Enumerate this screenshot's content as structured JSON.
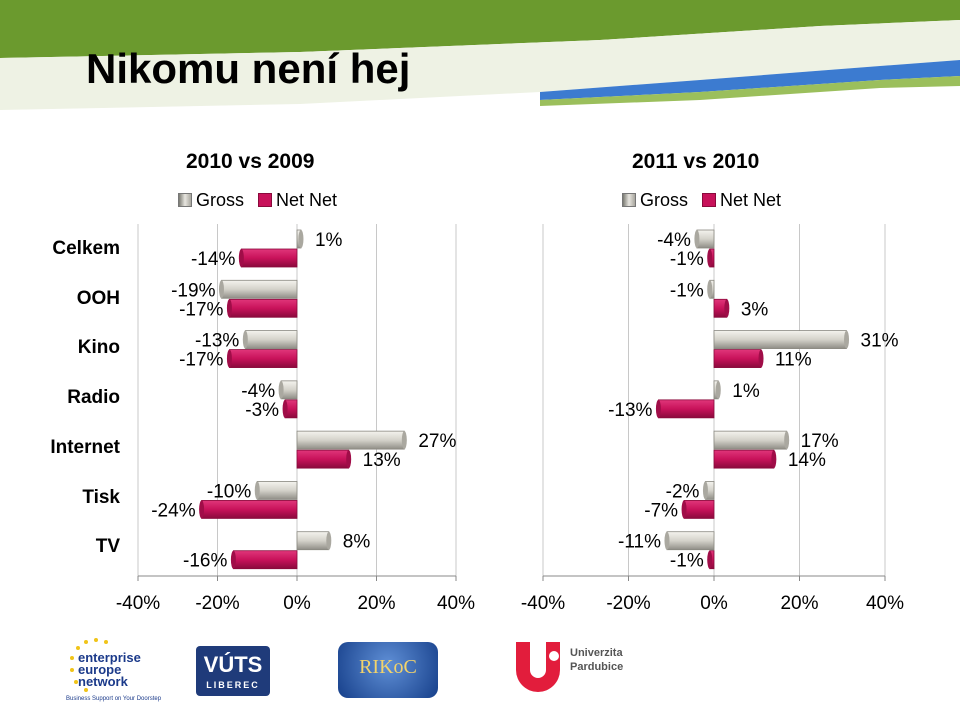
{
  "title": "Nikomu není hej",
  "colors": {
    "gross": "#bdbbb3",
    "net": "#c8125a",
    "banner_green": "#6b9a2e",
    "banner_blue": "#3c7bd0"
  },
  "legend": {
    "gross": "Gross",
    "net": "Net Net"
  },
  "categories": [
    "Celkem",
    "OOH",
    "Kino",
    "Radio",
    "Internet",
    "Tisk",
    "TV"
  ],
  "chart_data": [
    {
      "type": "bar",
      "title": "2010 vs 2009",
      "orientation": "horizontal",
      "categories": [
        "Celkem",
        "OOH",
        "Kino",
        "Radio",
        "Internet",
        "Tisk",
        "TV"
      ],
      "series": [
        {
          "name": "Gross",
          "values": [
            1,
            -19,
            -13,
            -4,
            27,
            -10,
            8
          ]
        },
        {
          "name": "Net Net",
          "values": [
            -14,
            -17,
            -17,
            -3,
            13,
            -24,
            -16
          ]
        }
      ],
      "xlim": [
        -40,
        40
      ],
      "xticks": [
        "-40%",
        "-20%",
        "0%",
        "20%",
        "40%"
      ],
      "grid": true,
      "legend_position": "top"
    },
    {
      "type": "bar",
      "title": "2011 vs 2010",
      "orientation": "horizontal",
      "categories": [
        "Celkem",
        "OOH",
        "Kino",
        "Radio",
        "Internet",
        "Tisk",
        "TV"
      ],
      "series": [
        {
          "name": "Gross",
          "values": [
            -4,
            -1,
            31,
            1,
            17,
            -2,
            -11
          ]
        },
        {
          "name": "Net Net",
          "values": [
            -1,
            3,
            11,
            -13,
            14,
            -7,
            -1
          ]
        }
      ],
      "xlim": [
        -40,
        40
      ],
      "xticks": [
        "-40%",
        "-20%",
        "0%",
        "20%",
        "40%"
      ],
      "grid": true,
      "legend_position": "top"
    }
  ],
  "logos": {
    "een": {
      "line1": "enterprise",
      "line2": "europe",
      "line3": "network",
      "slogan": "Business Support on Your Doorstep"
    },
    "vuts": {
      "name": "VÚTS",
      "city": "LIBEREC"
    },
    "rikoc": {
      "name": "RIKoC"
    },
    "upce": {
      "line1": "Univerzita",
      "line2": "Pardubice"
    }
  }
}
